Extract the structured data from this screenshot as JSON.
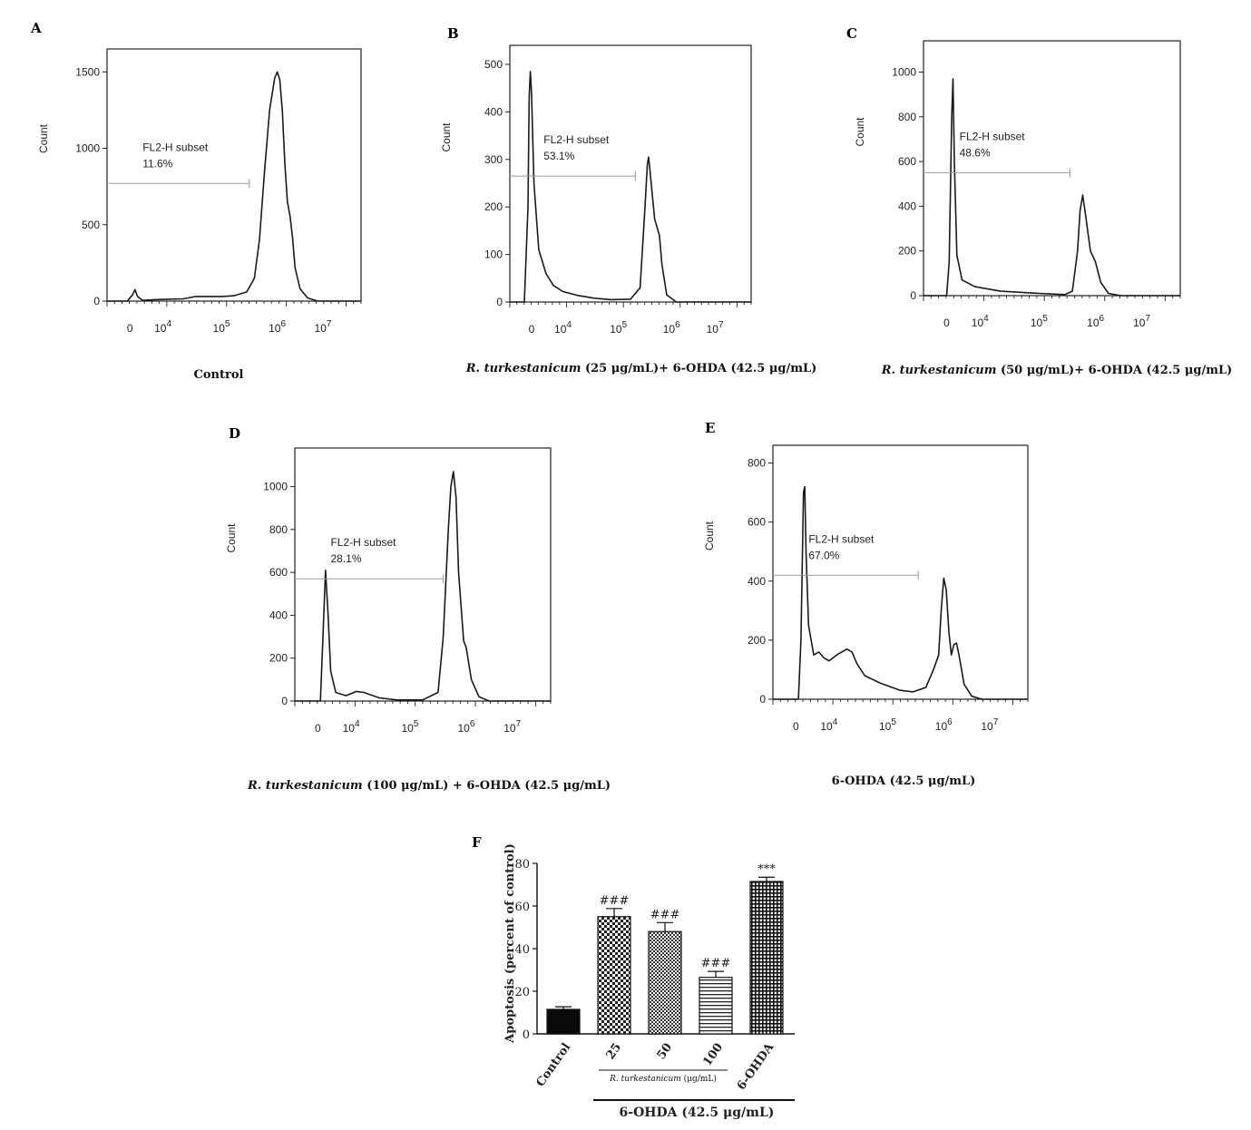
{
  "chart_data": [
    {
      "type": "area",
      "panel_letter": "A",
      "caption": "Control",
      "caption_parts": [
        {
          "text": "Control",
          "italic": false
        }
      ],
      "ylabel": "Count",
      "x_scale": "log",
      "x_tick_labels": [
        {
          "base": "0",
          "exp": ""
        },
        {
          "base": "10",
          "exp": "4"
        },
        {
          "base": "10",
          "exp": "5"
        },
        {
          "base": "10",
          "exp": "6"
        },
        {
          "base": "10",
          "exp": "7"
        }
      ],
      "yticks": [
        0,
        500,
        1000,
        1500
      ],
      "ylim": [
        0,
        1650
      ],
      "gate": {
        "label": "FL2-H subset",
        "percent": "11.6%",
        "count_level": 770,
        "x_end": 0.56
      },
      "curve": [
        [
          0.0,
          0
        ],
        [
          0.08,
          0
        ],
        [
          0.1,
          40
        ],
        [
          0.11,
          75
        ],
        [
          0.12,
          30
        ],
        [
          0.14,
          5
        ],
        [
          0.2,
          10
        ],
        [
          0.3,
          15
        ],
        [
          0.35,
          30
        ],
        [
          0.45,
          30
        ],
        [
          0.5,
          35
        ],
        [
          0.55,
          60
        ],
        [
          0.58,
          150
        ],
        [
          0.6,
          400
        ],
        [
          0.62,
          850
        ],
        [
          0.64,
          1250
        ],
        [
          0.66,
          1460
        ],
        [
          0.67,
          1500
        ],
        [
          0.68,
          1450
        ],
        [
          0.69,
          1250
        ],
        [
          0.7,
          900
        ],
        [
          0.71,
          650
        ],
        [
          0.72,
          560
        ],
        [
          0.73,
          420
        ],
        [
          0.74,
          220
        ],
        [
          0.76,
          80
        ],
        [
          0.79,
          20
        ],
        [
          0.83,
          0
        ],
        [
          1.0,
          0
        ]
      ]
    },
    {
      "type": "area",
      "panel_letter": "B",
      "caption": "R. turkestanicum (25 μg/mL)+ 6-OHDA (42.5 μg/mL)",
      "caption_parts": [
        {
          "text": "R. turkestanicum",
          "italic": true
        },
        {
          "text": " (25 μg/mL)+ 6-OHDA (42.5 μg/mL)",
          "italic": false
        }
      ],
      "ylabel": "Count",
      "x_scale": "log",
      "x_tick_labels": [
        {
          "base": "0",
          "exp": ""
        },
        {
          "base": "10",
          "exp": "4"
        },
        {
          "base": "10",
          "exp": "5"
        },
        {
          "base": "10",
          "exp": "6"
        },
        {
          "base": "10",
          "exp": "7"
        }
      ],
      "yticks": [
        0,
        100,
        200,
        300,
        400,
        500
      ],
      "ylim": [
        0,
        540
      ],
      "gate": {
        "label": "FL2-H subset",
        "percent": "53.1%",
        "count_level": 265,
        "x_end": 0.52
      },
      "curve": [
        [
          0.0,
          0
        ],
        [
          0.06,
          0
        ],
        [
          0.075,
          200
        ],
        [
          0.08,
          430
        ],
        [
          0.085,
          485
        ],
        [
          0.09,
          440
        ],
        [
          0.1,
          250
        ],
        [
          0.12,
          110
        ],
        [
          0.15,
          60
        ],
        [
          0.18,
          35
        ],
        [
          0.22,
          22
        ],
        [
          0.28,
          14
        ],
        [
          0.35,
          8
        ],
        [
          0.42,
          5
        ],
        [
          0.5,
          6
        ],
        [
          0.54,
          30
        ],
        [
          0.56,
          200
        ],
        [
          0.57,
          290
        ],
        [
          0.575,
          305
        ],
        [
          0.58,
          280
        ],
        [
          0.6,
          175
        ],
        [
          0.62,
          140
        ],
        [
          0.63,
          80
        ],
        [
          0.65,
          15
        ],
        [
          0.69,
          0
        ],
        [
          1.0,
          0
        ]
      ]
    },
    {
      "type": "area",
      "panel_letter": "C",
      "caption": "R. turkestanicum (50 μg/mL)+ 6-OHDA (42.5 μg/mL)",
      "caption_parts": [
        {
          "text": "R. turkestanicum",
          "italic": true
        },
        {
          "text": " (50 μg/mL)+ 6-OHDA (42.5 μg/mL)",
          "italic": false
        }
      ],
      "ylabel": "Count",
      "x_scale": "log",
      "x_tick_labels": [
        {
          "base": "0",
          "exp": ""
        },
        {
          "base": "10",
          "exp": "4"
        },
        {
          "base": "10",
          "exp": "5"
        },
        {
          "base": "10",
          "exp": "6"
        },
        {
          "base": "10",
          "exp": "7"
        }
      ],
      "yticks": [
        0,
        200,
        400,
        600,
        800,
        1000
      ],
      "ylim": [
        0,
        1140
      ],
      "gate": {
        "label": "FL2-H subset",
        "percent": "48.6%",
        "count_level": 550,
        "x_end": 0.57
      },
      "curve": [
        [
          0.0,
          0
        ],
        [
          0.09,
          0
        ],
        [
          0.1,
          150
        ],
        [
          0.11,
          800
        ],
        [
          0.115,
          970
        ],
        [
          0.12,
          600
        ],
        [
          0.13,
          180
        ],
        [
          0.15,
          70
        ],
        [
          0.2,
          40
        ],
        [
          0.3,
          20
        ],
        [
          0.45,
          10
        ],
        [
          0.55,
          5
        ],
        [
          0.58,
          20
        ],
        [
          0.6,
          200
        ],
        [
          0.61,
          380
        ],
        [
          0.62,
          450
        ],
        [
          0.63,
          370
        ],
        [
          0.65,
          200
        ],
        [
          0.67,
          150
        ],
        [
          0.69,
          60
        ],
        [
          0.72,
          10
        ],
        [
          0.77,
          0
        ],
        [
          1.0,
          0
        ]
      ]
    },
    {
      "type": "area",
      "panel_letter": "D",
      "caption": "R. turkestanicum (100 μg/mL) + 6-OHDA (42.5 μg/mL)",
      "caption_parts": [
        {
          "text": "R. turkestanicum",
          "italic": true
        },
        {
          "text": "  (100 μg/mL) + 6-OHDA (42.5 μg/mL)",
          "italic": false
        }
      ],
      "ylabel": "Count",
      "x_scale": "log",
      "x_tick_labels": [
        {
          "base": "0",
          "exp": ""
        },
        {
          "base": "10",
          "exp": "4"
        },
        {
          "base": "10",
          "exp": "5"
        },
        {
          "base": "10",
          "exp": "6"
        },
        {
          "base": "10",
          "exp": "7"
        }
      ],
      "yticks": [
        0,
        200,
        400,
        600,
        800,
        1000
      ],
      "ylim": [
        0,
        1180
      ],
      "gate": {
        "label": "FL2-H subset",
        "percent": "28.1%",
        "count_level": 570,
        "x_end": 0.58
      },
      "curve": [
        [
          0.0,
          0
        ],
        [
          0.1,
          0
        ],
        [
          0.11,
          300
        ],
        [
          0.12,
          610
        ],
        [
          0.13,
          400
        ],
        [
          0.14,
          140
        ],
        [
          0.16,
          40
        ],
        [
          0.2,
          25
        ],
        [
          0.24,
          45
        ],
        [
          0.27,
          40
        ],
        [
          0.33,
          15
        ],
        [
          0.4,
          5
        ],
        [
          0.5,
          5
        ],
        [
          0.56,
          40
        ],
        [
          0.58,
          300
        ],
        [
          0.6,
          800
        ],
        [
          0.61,
          1000
        ],
        [
          0.62,
          1070
        ],
        [
          0.63,
          950
        ],
        [
          0.64,
          600
        ],
        [
          0.65,
          440
        ],
        [
          0.66,
          280
        ],
        [
          0.67,
          250
        ],
        [
          0.69,
          100
        ],
        [
          0.72,
          20
        ],
        [
          0.76,
          0
        ],
        [
          1.0,
          0
        ]
      ]
    },
    {
      "type": "area",
      "panel_letter": "E",
      "caption": "6-OHDA (42.5 μg/mL)",
      "caption_parts": [
        {
          "text": "6-OHDA (42.5 μg/mL)",
          "italic": false
        }
      ],
      "ylabel": "Count",
      "x_scale": "log",
      "x_tick_labels": [
        {
          "base": "0",
          "exp": ""
        },
        {
          "base": "10",
          "exp": "4"
        },
        {
          "base": "10",
          "exp": "5"
        },
        {
          "base": "10",
          "exp": "6"
        },
        {
          "base": "10",
          "exp": "7"
        }
      ],
      "yticks": [
        0,
        200,
        400,
        600,
        800
      ],
      "ylim": [
        0,
        860
      ],
      "gate": {
        "label": "FL2-H subset",
        "percent": "67.0%",
        "count_level": 420,
        "x_end": 0.57
      },
      "curve": [
        [
          0.0,
          0
        ],
        [
          0.1,
          0
        ],
        [
          0.11,
          200
        ],
        [
          0.12,
          700
        ],
        [
          0.125,
          720
        ],
        [
          0.13,
          500
        ],
        [
          0.14,
          250
        ],
        [
          0.16,
          150
        ],
        [
          0.18,
          160
        ],
        [
          0.2,
          140
        ],
        [
          0.22,
          130
        ],
        [
          0.25,
          150
        ],
        [
          0.27,
          160
        ],
        [
          0.29,
          170
        ],
        [
          0.31,
          160
        ],
        [
          0.33,
          120
        ],
        [
          0.36,
          80
        ],
        [
          0.42,
          55
        ],
        [
          0.5,
          30
        ],
        [
          0.55,
          25
        ],
        [
          0.6,
          40
        ],
        [
          0.63,
          100
        ],
        [
          0.65,
          150
        ],
        [
          0.66,
          300
        ],
        [
          0.67,
          410
        ],
        [
          0.68,
          370
        ],
        [
          0.69,
          230
        ],
        [
          0.7,
          150
        ],
        [
          0.71,
          185
        ],
        [
          0.72,
          190
        ],
        [
          0.73,
          150
        ],
        [
          0.75,
          50
        ],
        [
          0.78,
          10
        ],
        [
          0.82,
          0
        ],
        [
          1.0,
          0
        ]
      ]
    },
    {
      "type": "bar",
      "panel_letter": "F",
      "categories": [
        "Control",
        "25",
        "50",
        "100",
        "6-OHDA"
      ],
      "values": [
        11.5,
        55,
        48,
        26.5,
        71.5
      ],
      "errors": [
        1.2,
        3.8,
        4.2,
        2.8,
        2.0
      ],
      "annotations": [
        "",
        "###",
        "###",
        "###",
        "***"
      ],
      "fill_patterns": [
        "solid",
        "checker-large",
        "checker-small",
        "horizontal-lines",
        "grid"
      ],
      "ylabel": "Apoptosis (percent of control)",
      "yticks": [
        0,
        20,
        40,
        60,
        80
      ],
      "ylim": [
        0,
        80
      ],
      "group_label_inner": {
        "italic": "R. turkestanicum",
        "normal": " (μg/mL)"
      },
      "group_label_outer": "6-OHDA (42.5 μg/mL)"
    }
  ]
}
